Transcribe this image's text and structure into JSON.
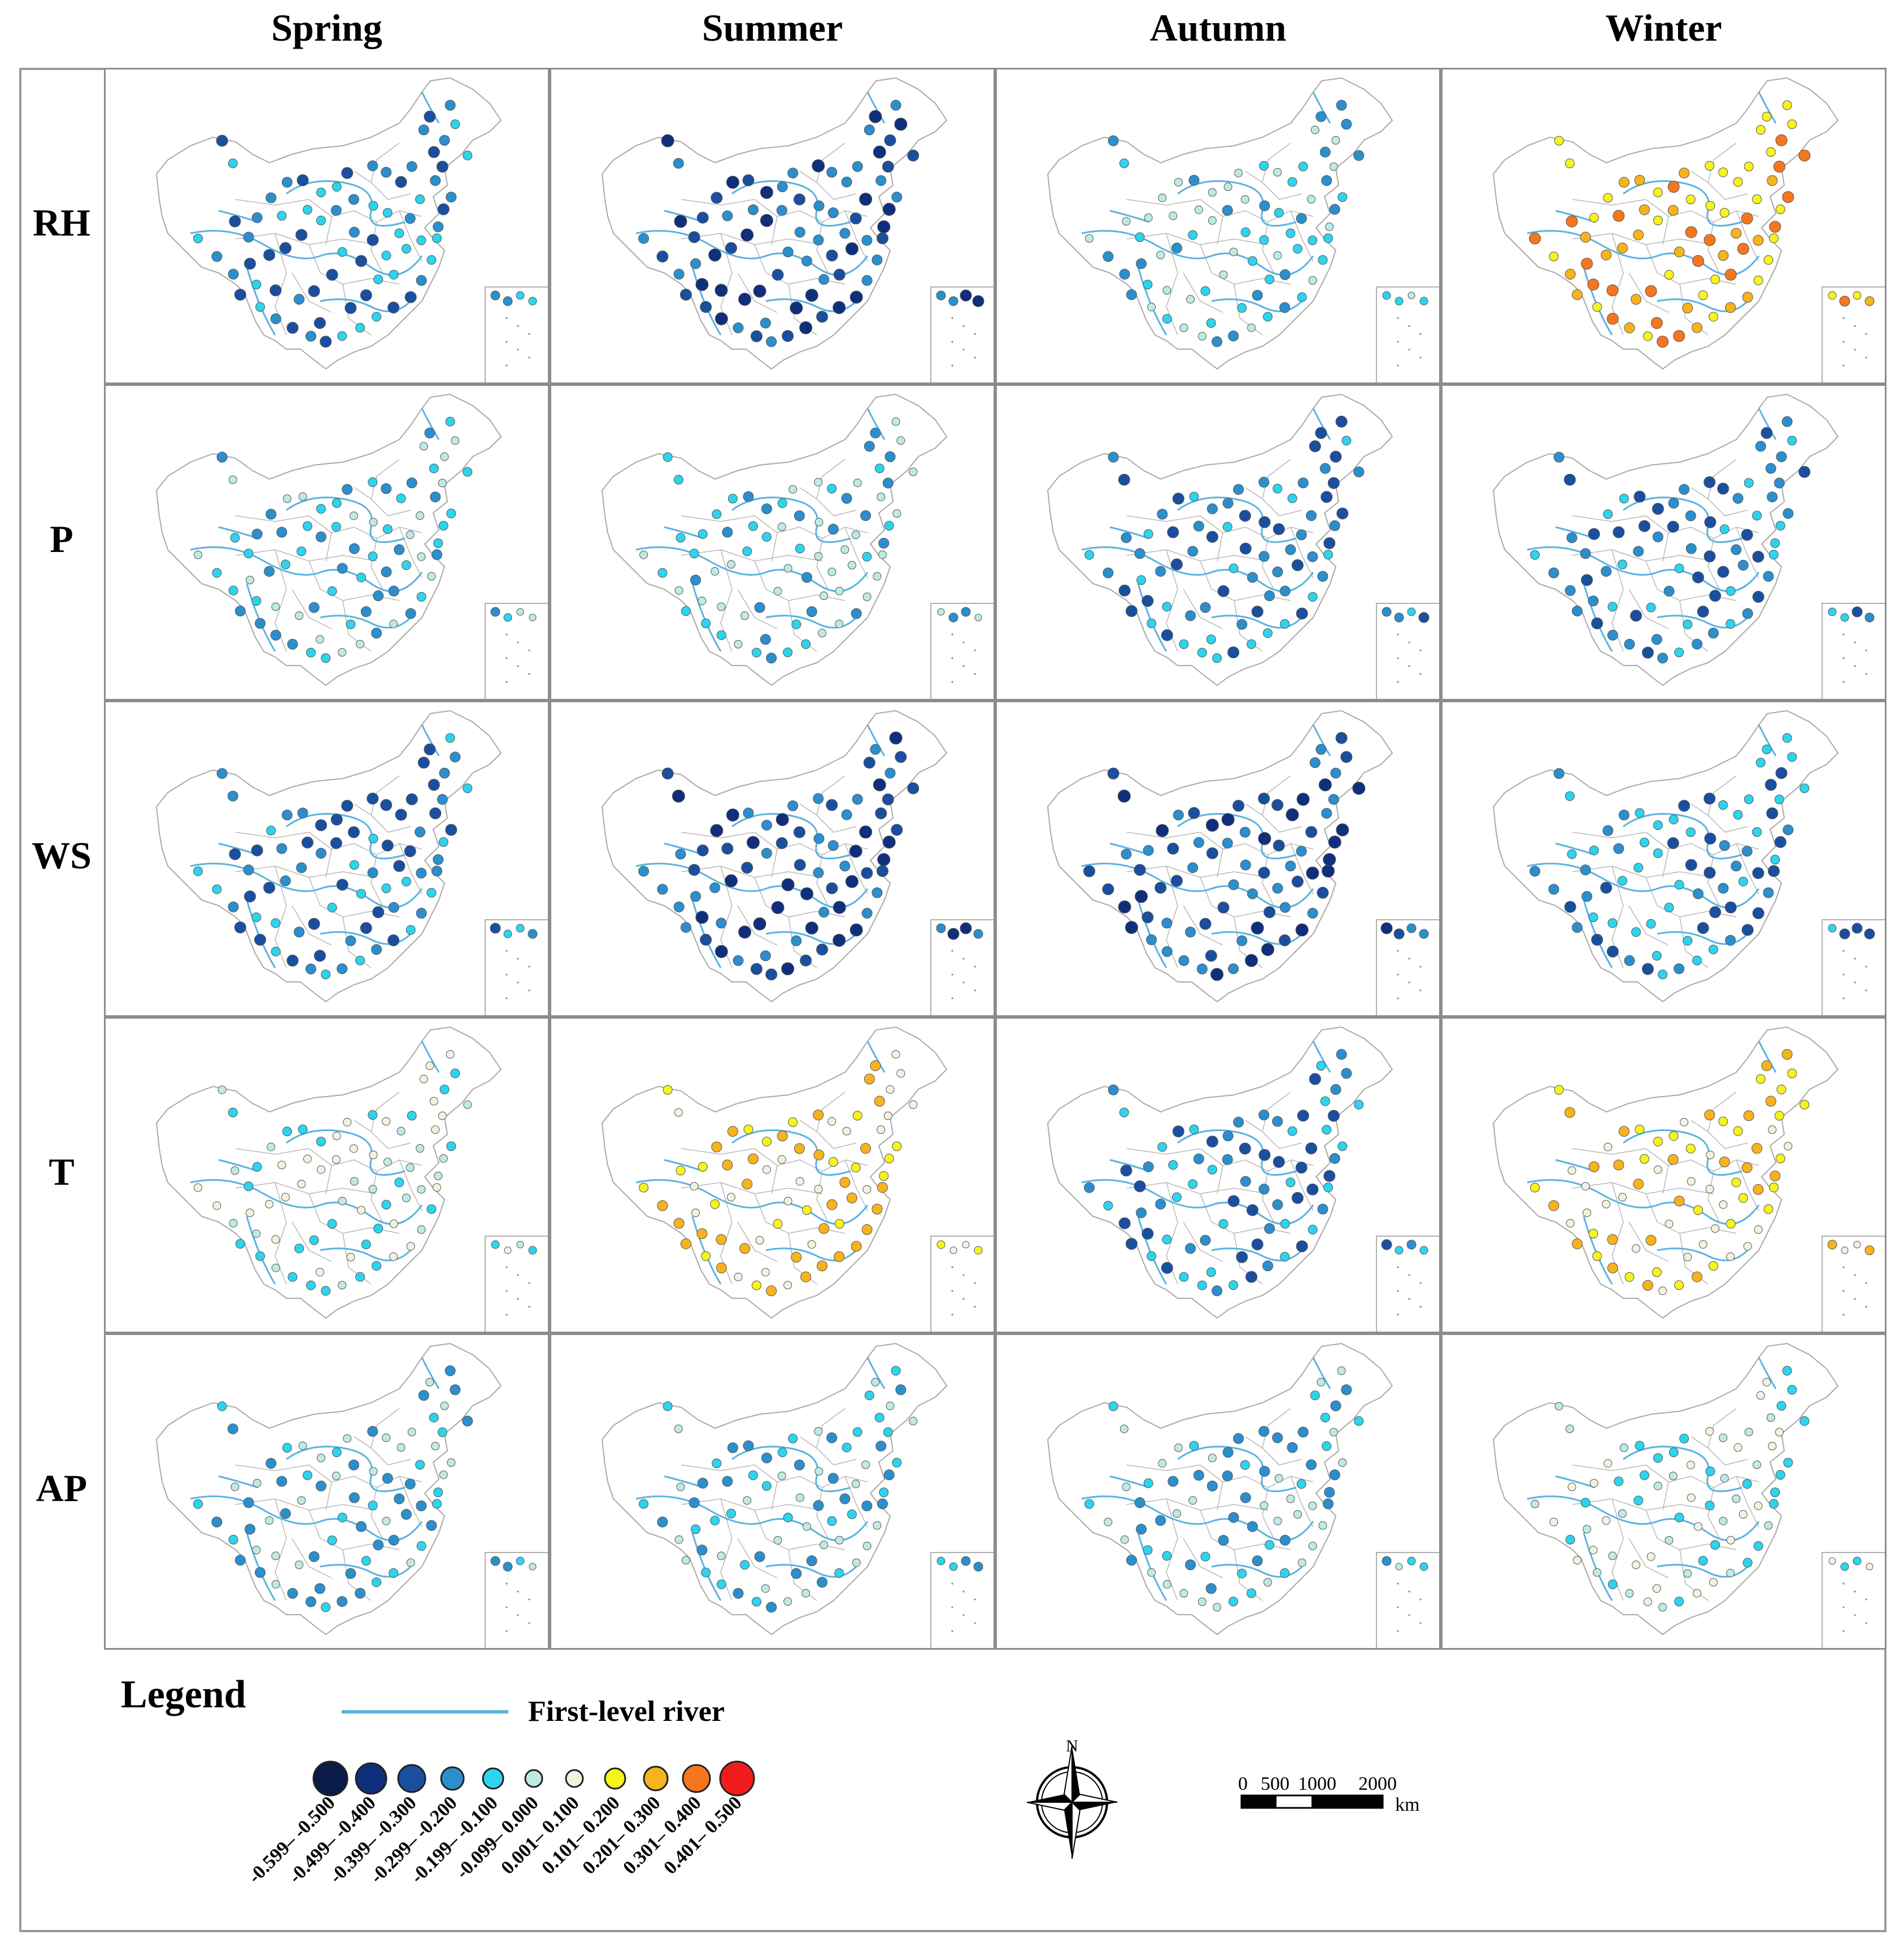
{
  "seasons": [
    "Spring",
    "Summer",
    "Autumn",
    "Winter"
  ],
  "variables": [
    "RH",
    "P",
    "WS",
    "T",
    "AP"
  ],
  "legend": {
    "title": "Legend",
    "river_label": "First-level river",
    "classes": [
      {
        "label": "-0.599– -0.500",
        "color": "#0b1b47"
      },
      {
        "label": "-0.499– -0.400",
        "color": "#0f2f7d"
      },
      {
        "label": "-0.399– -0.300",
        "color": "#1a4f9f"
      },
      {
        "label": "-0.299– -0.200",
        "color": "#2b8fce"
      },
      {
        "label": "-0.199– -0.100",
        "color": "#2cd4ee"
      },
      {
        "label": "-0.099– 0.000",
        "color": "#bdebe2"
      },
      {
        "label": "0.001– 0.100",
        "color": "#f2f2e0"
      },
      {
        "label": "0.101– 0.200",
        "color": "#f6f31d"
      },
      {
        "label": "0.201– 0.300",
        "color": "#f7b31c"
      },
      {
        "label": "0.301– 0.400",
        "color": "#f6761d"
      },
      {
        "label": "0.401– 0.500",
        "color": "#f21b1b"
      }
    ]
  },
  "north_label": "N",
  "scale_bar": {
    "ticks": [
      "0",
      "500",
      "1000",
      "2000"
    ],
    "unit": "km"
  },
  "river_color": "#5ab3e0",
  "panel_dominant_class": {
    "RH": [
      3,
      2,
      4,
      8
    ],
    "P": [
      4,
      4,
      3,
      3
    ],
    "WS": [
      3,
      2,
      2,
      3
    ],
    "T": [
      5,
      7,
      3,
      7
    ],
    "AP": [
      4,
      4,
      4,
      5
    ]
  }
}
